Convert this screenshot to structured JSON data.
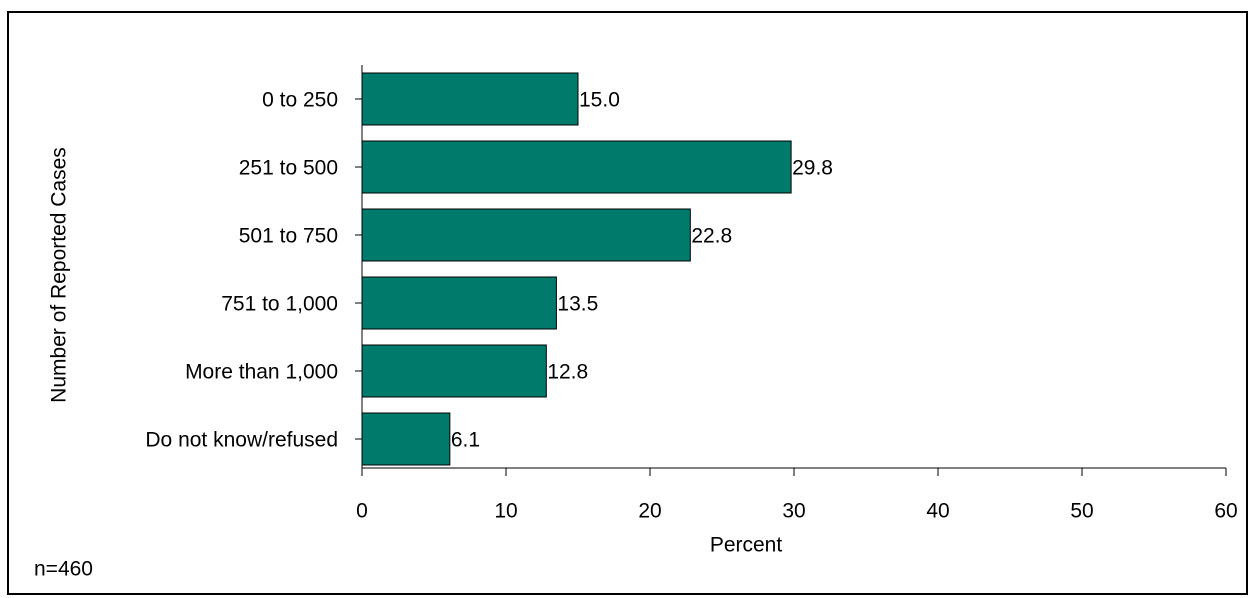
{
  "chart_data": {
    "type": "bar",
    "orientation": "horizontal",
    "categories": [
      "0 to 250",
      "251 to 500",
      "501 to 750",
      "751 to 1,000",
      "More than 1,000",
      "Do not know/refused"
    ],
    "values": [
      15.0,
      29.8,
      22.8,
      13.5,
      12.8,
      6.1
    ],
    "value_labels": [
      "15.0",
      "29.8",
      "22.8",
      "13.5",
      "12.8",
      "6.1"
    ],
    "color": "#007a6b",
    "xlabel": "Percent",
    "ylabel": "Number of Reported Cases",
    "xlim": [
      0,
      60
    ],
    "xticks": [
      0,
      10,
      20,
      30,
      40,
      50,
      60
    ],
    "annotation": "n=460"
  }
}
